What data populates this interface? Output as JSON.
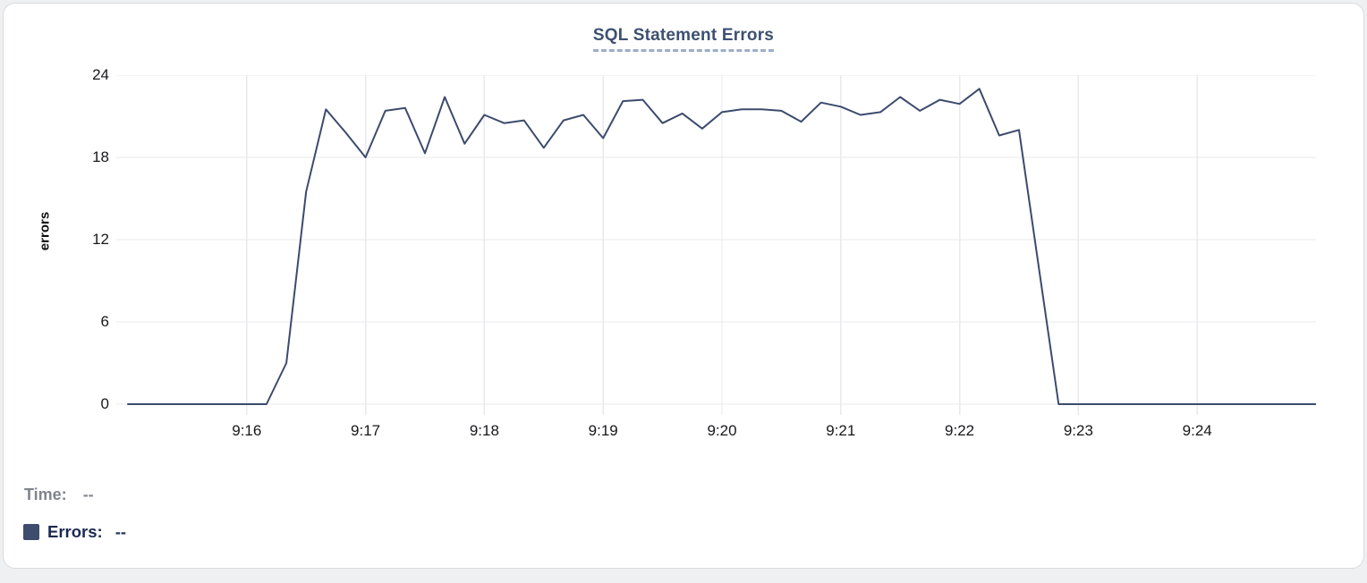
{
  "panel": {
    "title": "SQL Statement Errors"
  },
  "tooltip_readout": {
    "time_label": "Time:",
    "time_value": "--",
    "errors_label": "Errors:",
    "errors_value": "--"
  },
  "colors": {
    "series_line": "#3c4b6d",
    "legend_swatch": "#3e4d6b",
    "title_text": "#3d5070",
    "title_underline": "#9fadc6",
    "gridline": "#e9eaec",
    "axis_text": "#17181b",
    "muted_text": "#80848d",
    "navy_text": "#1b2a52",
    "card_border": "#d9dbdf"
  },
  "chart_data": {
    "type": "line",
    "title": "SQL Statement Errors",
    "xlabel": "",
    "ylabel": "errors",
    "ylim": [
      0,
      24
    ],
    "yticks": [
      0,
      6,
      12,
      18,
      24
    ],
    "xticks": [
      "9:16",
      "9:17",
      "9:18",
      "9:19",
      "9:20",
      "9:21",
      "9:22",
      "9:23",
      "9:24"
    ],
    "x_start_time": "9:15:00",
    "x_end_time": "9:25:00",
    "point_interval_seconds": 10,
    "grid": true,
    "legend_position": "bottom-left",
    "series": [
      {
        "name": "Errors",
        "color": "#3c4b6d",
        "values": [
          0,
          0,
          0,
          0,
          0,
          0,
          0,
          0,
          3,
          15.5,
          21.5,
          19.8,
          18,
          21.4,
          21.6,
          18.3,
          22.4,
          19,
          21.1,
          20.5,
          20.7,
          18.7,
          20.7,
          21.1,
          19.4,
          22.1,
          22.2,
          20.5,
          21.2,
          20.1,
          21.3,
          21.5,
          21.5,
          21.4,
          20.6,
          22,
          21.7,
          21.1,
          21.3,
          22.4,
          21.4,
          22.2,
          21.9,
          23,
          19.6,
          20,
          10,
          0,
          0,
          0,
          0,
          0,
          0,
          0,
          0,
          0,
          0,
          0,
          0,
          0,
          0
        ]
      }
    ]
  }
}
